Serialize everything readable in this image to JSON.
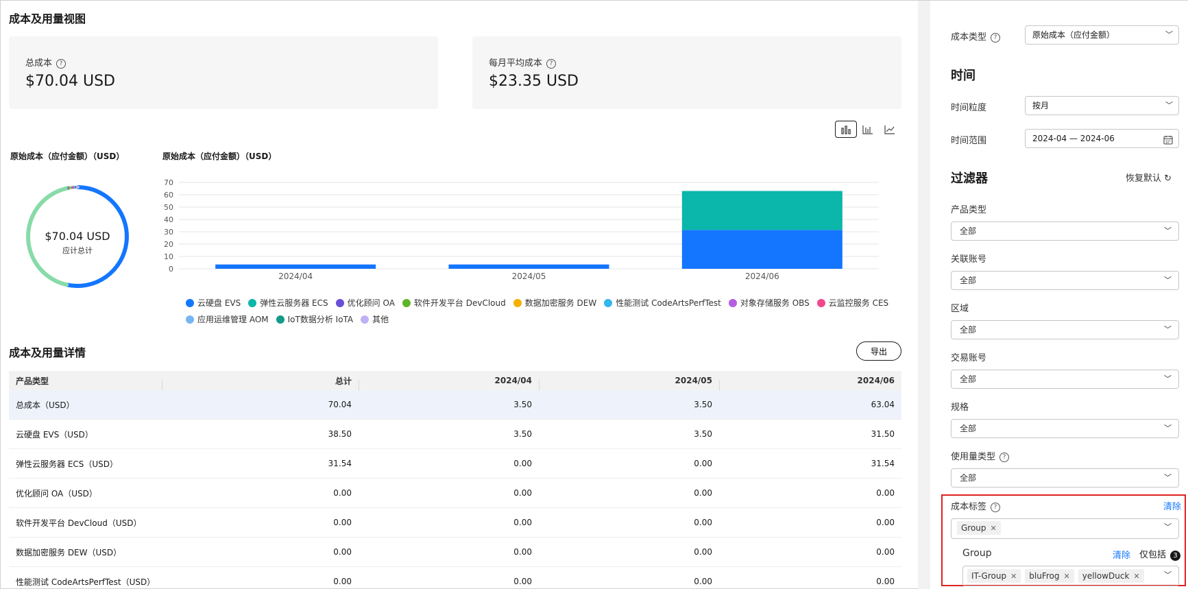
{
  "page_title": "成本及用量视图",
  "cards": {
    "total": {
      "label": "总成本",
      "value": "$70.04 USD"
    },
    "monthly": {
      "label": "每月平均成本",
      "value": "$23.35 USD"
    }
  },
  "chart_toggle": {
    "icons": [
      "bar-chart-icon",
      "column-chart-icon",
      "line-chart-icon"
    ],
    "active": "bar-chart-icon"
  },
  "donut_title": "原始成本（应付金额）（USD）",
  "donut_center_value": "$70.04 USD",
  "donut_center_label": "应计总计",
  "bar_title": "原始成本（应付金额）（USD）",
  "chart_data": [
    {
      "type": "pie",
      "title": "原始成本（应付金额）（USD）",
      "categories": [
        "云硬盘 EVS",
        "弹性云服务器 ECS",
        "优化顾问 OA",
        "软件开发平台 DevCloud",
        "数据加密服务 DEW",
        "性能测试 CodeArtsPerfTest",
        "对象存储服务 OBS",
        "云监控服务 CES",
        "应用运维管理 AOM",
        "IoT数据分析 IoTA",
        "其他"
      ],
      "values": [
        38.5,
        31.54,
        0,
        0,
        0,
        0,
        0,
        0,
        0,
        0,
        0
      ],
      "colors": [
        "#1476ff",
        "#88dba8",
        "#7b5be0",
        "#5fb526",
        "#f6b100",
        "#33b7ec",
        "#b65ee0",
        "#f0478d",
        "#78b5f3",
        "#139a8a",
        "#c0b0f5"
      ]
    },
    {
      "type": "bar",
      "stacked": true,
      "title": "原始成本（应付金额）（USD）",
      "categories": [
        "2024/04",
        "2024/05",
        "2024/06"
      ],
      "series": [
        {
          "name": "云硬盘 EVS",
          "values": [
            3.5,
            3.5,
            31.5
          ],
          "color": "#1476ff"
        },
        {
          "name": "弹性云服务器 ECS",
          "values": [
            0,
            0,
            31.54
          ],
          "color": "#0ab7aa"
        }
      ],
      "ylim": [
        0,
        70
      ],
      "yticks": [
        0,
        10,
        20,
        30,
        40,
        50,
        60,
        70
      ],
      "grid": true,
      "legend": "bottom"
    }
  ],
  "legend": [
    {
      "name": "云硬盘 EVS",
      "color": "#1476ff"
    },
    {
      "name": "弹性云服务器 ECS",
      "color": "#0ab7aa"
    },
    {
      "name": "优化顾问 OA",
      "color": "#6a4fd8"
    },
    {
      "name": "软件开发平台 DevCloud",
      "color": "#5fb526"
    },
    {
      "name": "数据加密服务 DEW",
      "color": "#f6b100"
    },
    {
      "name": "性能测试 CodeArtsPerfTest",
      "color": "#33b7ec"
    },
    {
      "name": "对象存储服务 OBS",
      "color": "#b65ee0"
    },
    {
      "name": "云监控服务 CES",
      "color": "#f0478d"
    },
    {
      "name": "应用运维管理 AOM",
      "color": "#78b5f3"
    },
    {
      "name": "IoT数据分析 IoTA",
      "color": "#139a8a"
    },
    {
      "name": "其他",
      "color": "#c0b0f5"
    }
  ],
  "detail_title": "成本及用量详情",
  "export_label": "导出",
  "table": {
    "headers": [
      "产品类型",
      "总计",
      "2024/04",
      "2024/05",
      "2024/06"
    ],
    "rows": [
      [
        "总成本（USD）",
        "70.04",
        "3.50",
        "3.50",
        "63.04"
      ],
      [
        "云硬盘 EVS（USD）",
        "38.50",
        "3.50",
        "3.50",
        "31.50"
      ],
      [
        "弹性云服务器 ECS（USD）",
        "31.54",
        "0.00",
        "0.00",
        "31.54"
      ],
      [
        "优化顾问 OA（USD）",
        "0.00",
        "0.00",
        "0.00",
        "0.00"
      ],
      [
        "软件开发平台 DevCloud（USD）",
        "0.00",
        "0.00",
        "0.00",
        "0.00"
      ],
      [
        "数据加密服务 DEW（USD）",
        "0.00",
        "0.00",
        "0.00",
        "0.00"
      ],
      [
        "性能测试 CodeArtsPerfTest（USD）",
        "0.00",
        "0.00",
        "0.00",
        "0.00"
      ]
    ]
  },
  "panel": {
    "cost_type": {
      "label": "成本类型",
      "value": "原始成本（应付金额）"
    },
    "time_heading": "时间",
    "granularity": {
      "label": "时间粒度",
      "value": "按月"
    },
    "range": {
      "label": "时间范围",
      "value": "2024-04 — 2024-06"
    },
    "filter_heading": "过滤器",
    "restore_label": "恢复默认",
    "filters": [
      {
        "label": "产品类型",
        "value": "全部"
      },
      {
        "label": "关联账号",
        "value": "全部"
      },
      {
        "label": "区域",
        "value": "全部"
      },
      {
        "label": "交易账号",
        "value": "全部"
      },
      {
        "label": "规格",
        "value": "全部"
      },
      {
        "label": "使用量类型",
        "value": "全部"
      }
    ],
    "cost_tag": {
      "label": "成本标签",
      "clear": "清除",
      "selected_tag": "Group",
      "group_label": "Group",
      "group_clear": "清除",
      "include_label": "仅包括",
      "include_count": "3",
      "values": [
        "IT-Group",
        "bluFrog",
        "yellowDuck"
      ]
    }
  }
}
